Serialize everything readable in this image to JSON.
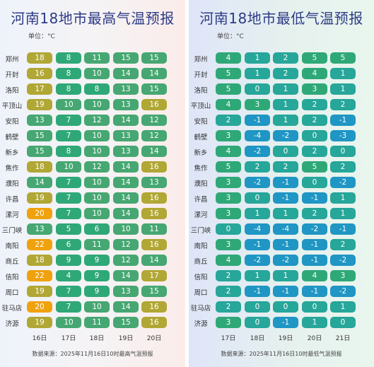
{
  "colors": {
    "very_hot": "#f0a20e",
    "hot": "#b1a734",
    "warm": "#46a772",
    "mild": "#2fa878",
    "cool": "#27a69a",
    "cold": "#1f96c4"
  },
  "high": {
    "title": "河南18地市最高气温预报",
    "unit": "单位：°C",
    "days": [
      "16日",
      "17日",
      "18日",
      "19日",
      "20日"
    ],
    "source": "数据来源：2025年11月16日10时最高气温预报",
    "rows": [
      {
        "city": "郑州",
        "values": [
          18,
          8,
          11,
          15,
          15
        ]
      },
      {
        "city": "开封",
        "values": [
          16,
          8,
          10,
          14,
          14
        ]
      },
      {
        "city": "洛阳",
        "values": [
          17,
          8,
          8,
          13,
          15
        ]
      },
      {
        "city": "平顶山",
        "values": [
          19,
          10,
          10,
          13,
          16
        ]
      },
      {
        "city": "安阳",
        "values": [
          13,
          7,
          12,
          14,
          12
        ]
      },
      {
        "city": "鹤壁",
        "values": [
          15,
          7,
          10,
          13,
          12
        ]
      },
      {
        "city": "新乡",
        "values": [
          15,
          8,
          10,
          13,
          14
        ]
      },
      {
        "city": "焦作",
        "values": [
          18,
          10,
          12,
          14,
          16
        ]
      },
      {
        "city": "濮阳",
        "values": [
          14,
          7,
          10,
          14,
          13
        ]
      },
      {
        "city": "许昌",
        "values": [
          19,
          7,
          10,
          14,
          16
        ]
      },
      {
        "city": "漯河",
        "values": [
          20,
          7,
          10,
          14,
          16
        ]
      },
      {
        "city": "三门峡",
        "values": [
          13,
          5,
          6,
          10,
          11
        ]
      },
      {
        "city": "南阳",
        "values": [
          22,
          6,
          11,
          12,
          16
        ]
      },
      {
        "city": "商丘",
        "values": [
          18,
          9,
          9,
          12,
          14
        ]
      },
      {
        "city": "信阳",
        "values": [
          22,
          4,
          9,
          14,
          17
        ]
      },
      {
        "city": "周口",
        "values": [
          19,
          7,
          9,
          13,
          15
        ]
      },
      {
        "city": "驻马店",
        "values": [
          20,
          7,
          10,
          14,
          16
        ]
      },
      {
        "city": "济源",
        "values": [
          19,
          10,
          11,
          15,
          16
        ]
      }
    ]
  },
  "low": {
    "title": "河南18地市最低气温预报",
    "unit": "单位：°C",
    "days": [
      "17日",
      "18日",
      "19日",
      "20日",
      "21日"
    ],
    "source": "数据来源：2025年11月16日10时最低气温预报",
    "rows": [
      {
        "city": "郑州",
        "values": [
          4,
          1,
          2,
          5,
          5
        ]
      },
      {
        "city": "开封",
        "values": [
          5,
          1,
          2,
          4,
          1
        ]
      },
      {
        "city": "洛阳",
        "values": [
          5,
          0,
          1,
          3,
          1
        ]
      },
      {
        "city": "平顶山",
        "values": [
          4,
          3,
          1,
          2,
          2
        ]
      },
      {
        "city": "安阳",
        "values": [
          2,
          -1,
          1,
          2,
          -1
        ]
      },
      {
        "city": "鹤壁",
        "values": [
          3,
          -4,
          -2,
          0,
          -3
        ]
      },
      {
        "city": "新乡",
        "values": [
          4,
          -2,
          0,
          2,
          0
        ]
      },
      {
        "city": "焦作",
        "values": [
          5,
          2,
          2,
          5,
          2
        ]
      },
      {
        "city": "濮阳",
        "values": [
          3,
          -2,
          -1,
          0,
          -2
        ]
      },
      {
        "city": "许昌",
        "values": [
          3,
          0,
          -1,
          -1,
          1
        ]
      },
      {
        "city": "漯河",
        "values": [
          3,
          1,
          1,
          2,
          1
        ]
      },
      {
        "city": "三门峡",
        "values": [
          0,
          -4,
          -4,
          -2,
          -1
        ]
      },
      {
        "city": "南阳",
        "values": [
          3,
          -1,
          -1,
          -1,
          2
        ]
      },
      {
        "city": "商丘",
        "values": [
          4,
          -2,
          -2,
          -1,
          -2
        ]
      },
      {
        "city": "信阳",
        "values": [
          2,
          1,
          1,
          4,
          3
        ]
      },
      {
        "city": "周口",
        "values": [
          2,
          -1,
          -1,
          -1,
          -2
        ]
      },
      {
        "city": "驻马店",
        "values": [
          2,
          0,
          0,
          0,
          1
        ]
      },
      {
        "city": "济源",
        "values": [
          3,
          0,
          -1,
          1,
          0
        ]
      }
    ]
  }
}
